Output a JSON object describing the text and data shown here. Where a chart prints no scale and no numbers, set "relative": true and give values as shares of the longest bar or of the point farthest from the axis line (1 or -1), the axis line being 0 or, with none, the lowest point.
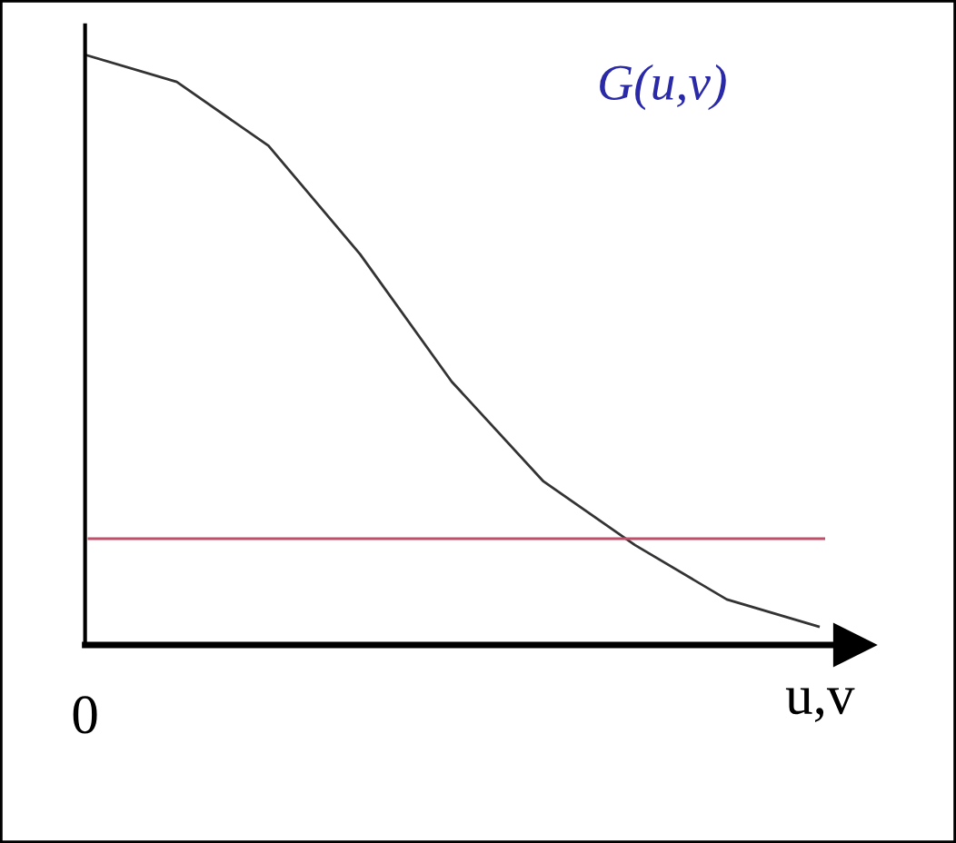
{
  "chart_data": {
    "type": "line",
    "relative": true,
    "xlabel": "u,v",
    "categories": [
      null,
      null,
      null,
      null,
      null,
      null,
      null,
      null,
      null
    ],
    "series": [
      {
        "color": "#333333",
        "values": [
          1,
          0.954,
          0.846,
          0.662,
          0.446,
          0.277,
          0.169,
          0.077,
          0.031
        ]
      }
    ],
    "ref_lines": [
      {
        "axis": "y",
        "value": 0.18,
        "color": "#c0506a"
      }
    ],
    "annotations": [
      "0",
      "G(u,v)"
    ],
    "marker": "none",
    "line_style": "solid",
    "legend": false
  }
}
